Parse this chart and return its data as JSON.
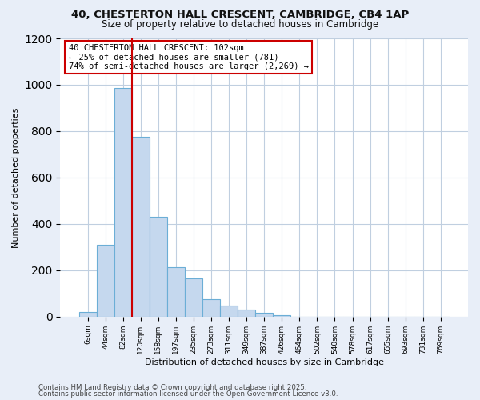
{
  "title1": "40, CHESTERTON HALL CRESCENT, CAMBRIDGE, CB4 1AP",
  "title2": "Size of property relative to detached houses in Cambridge",
  "xlabel": "Distribution of detached houses by size in Cambridge",
  "ylabel": "Number of detached properties",
  "bin_labels": [
    "6sqm",
    "44sqm",
    "82sqm",
    "120sqm",
    "158sqm",
    "197sqm",
    "235sqm",
    "273sqm",
    "311sqm",
    "349sqm",
    "387sqm",
    "426sqm",
    "464sqm",
    "502sqm",
    "540sqm",
    "578sqm",
    "617sqm",
    "655sqm",
    "693sqm",
    "731sqm",
    "769sqm"
  ],
  "bar_heights": [
    20,
    310,
    985,
    775,
    430,
    215,
    165,
    75,
    48,
    32,
    15,
    5,
    0,
    0,
    0,
    0,
    0,
    0,
    0,
    0,
    0
  ],
  "bar_color": "#c5d8ee",
  "bar_edge_color": "#6baed6",
  "vline_color": "#cc0000",
  "annotation_title": "40 CHESTERTON HALL CRESCENT: 102sqm",
  "annotation_line1": "← 25% of detached houses are smaller (781)",
  "annotation_line2": "74% of semi-detached houses are larger (2,269) →",
  "annotation_box_color": "#ffffff",
  "annotation_box_edge": "#cc0000",
  "ylim": [
    0,
    1200
  ],
  "yticks": [
    0,
    200,
    400,
    600,
    800,
    1000,
    1200
  ],
  "footer1": "Contains HM Land Registry data © Crown copyright and database right 2025.",
  "footer2": "Contains public sector information licensed under the Open Government Licence v3.0.",
  "bg_color": "#e8eef8",
  "plot_bg_color": "#ffffff",
  "grid_color": "#c0cfe0"
}
